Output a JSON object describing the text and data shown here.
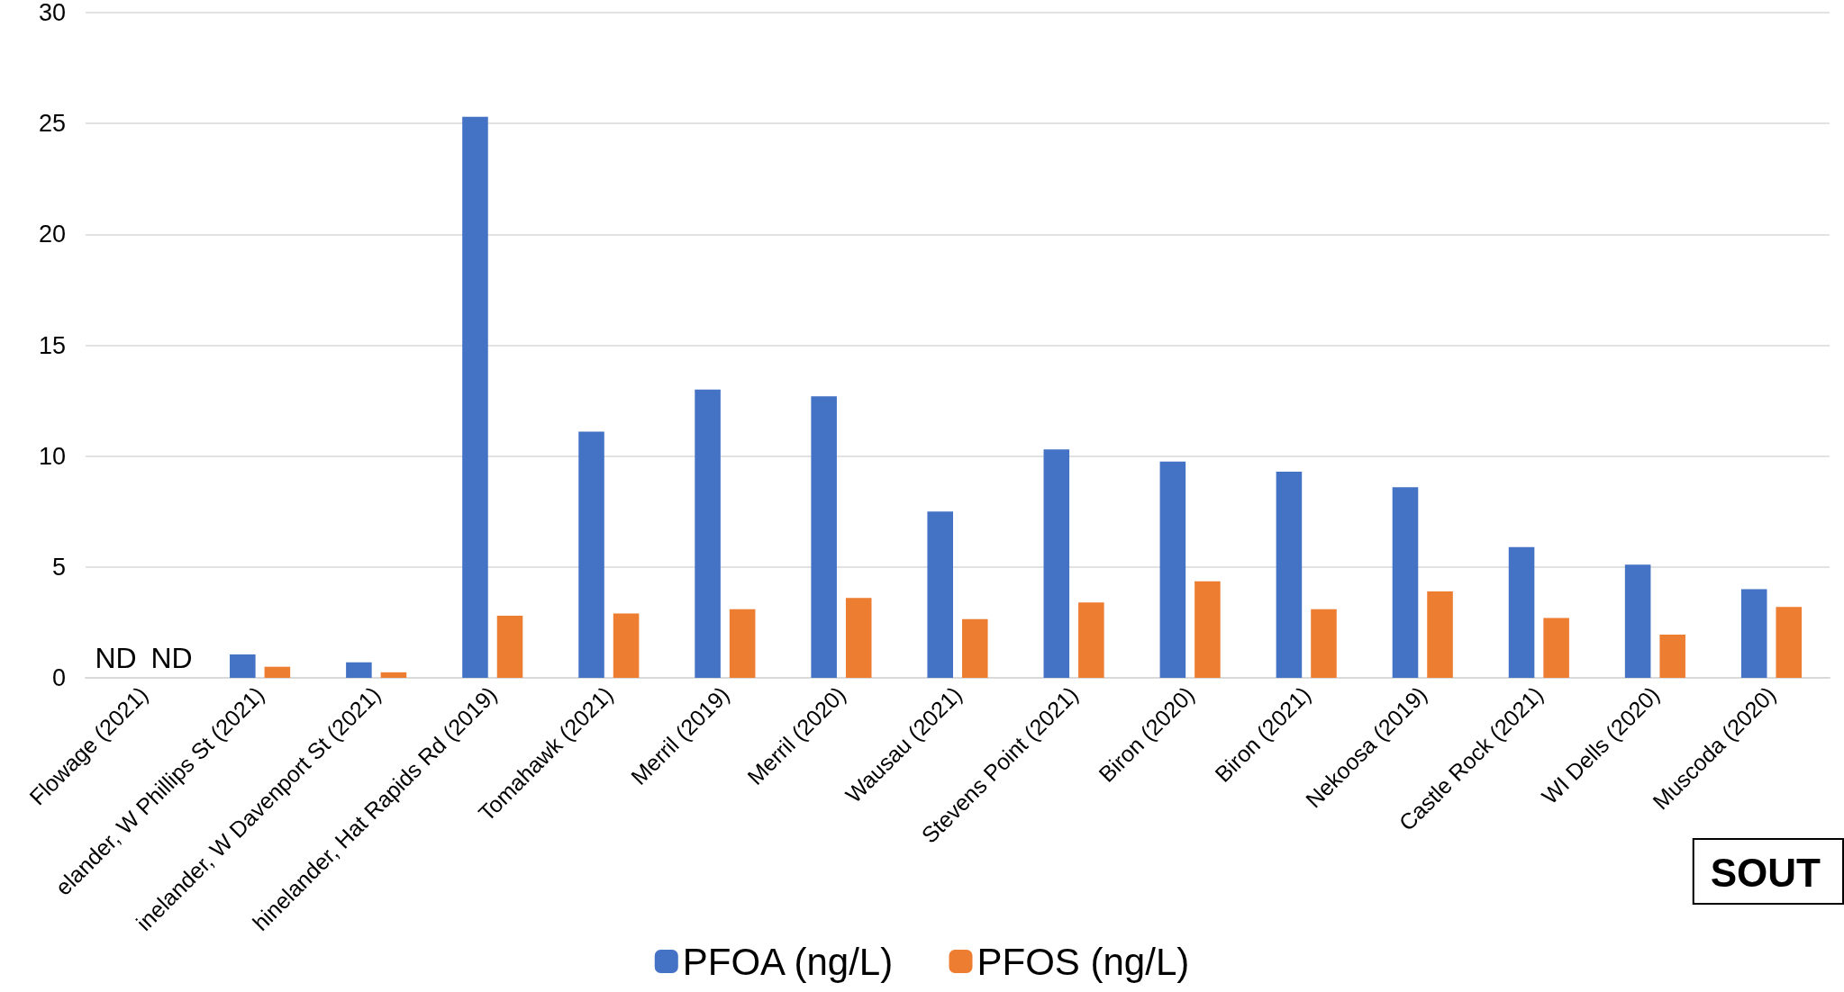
{
  "chart_data": {
    "type": "bar",
    "categories": [
      "Flowage (2021)",
      "elander, W Phillips St (2021)",
      "inelander, W Davenport St (2021)",
      "hinelander, Hat Rapids Rd (2019)",
      "Tomahawk (2021)",
      "Merril (2019)",
      "Merril (2020)",
      "Wausau (2021)",
      "Stevens Point (2021)",
      "Biron (2020)",
      "Biron (2021)",
      "Nekoosa (2019)",
      "Castle Rock (2021)",
      "WI Dells (2020)",
      "Muscoda (2020)"
    ],
    "series": [
      {
        "name": "PFOA (ng/L)",
        "color": "#4472c4",
        "values": [
          null,
          1.06,
          0.7,
          25.3,
          11.1,
          13.0,
          12.7,
          7.5,
          10.3,
          9.75,
          9.3,
          8.6,
          5.9,
          5.1,
          4.0
        ]
      },
      {
        "name": "PFOS (ng/L)",
        "color": "#ed7d31",
        "values": [
          null,
          0.5,
          0.25,
          2.8,
          2.9,
          3.1,
          3.6,
          2.65,
          3.4,
          4.35,
          3.1,
          3.9,
          2.7,
          1.95,
          3.2
        ]
      }
    ],
    "ylim": [
      0,
      30
    ],
    "yticks": [
      0,
      5,
      10,
      15,
      20,
      25,
      30
    ],
    "grid": "y",
    "legend": "bottom",
    "annotations": [
      "ND",
      "ND",
      "SOUT"
    ]
  }
}
